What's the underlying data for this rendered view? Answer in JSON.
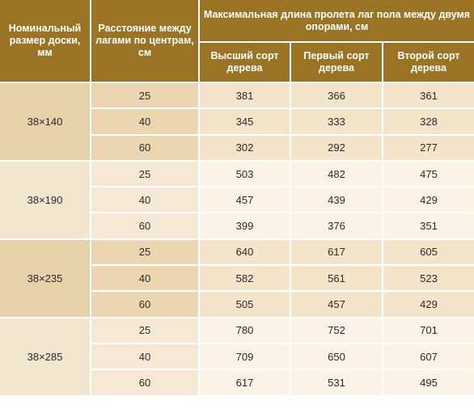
{
  "table": {
    "headers": {
      "size": "Номинальный размер доски, мм",
      "spacing": "Расстояние между лагами по центрам, см",
      "span": "Максимальная длина пролета лаг пола между двумя опорами, см",
      "grade_top": "Высший сорт дерева",
      "grade_first": "Первый сорт дерева",
      "grade_second": "Второй сорт дерева"
    },
    "groups": [
      {
        "size": "38×140",
        "rows": [
          {
            "spacing": "25",
            "top": "381",
            "first": "366",
            "second": "361"
          },
          {
            "spacing": "40",
            "top": "345",
            "first": "333",
            "second": "328"
          },
          {
            "spacing": "60",
            "top": "302",
            "first": "292",
            "second": "277"
          }
        ]
      },
      {
        "size": "38×190",
        "rows": [
          {
            "spacing": "25",
            "top": "503",
            "first": "482",
            "second": "475"
          },
          {
            "spacing": "40",
            "top": "457",
            "first": "439",
            "second": "429"
          },
          {
            "spacing": "60",
            "top": "399",
            "first": "376",
            "second": "351"
          }
        ]
      },
      {
        "size": "38×235",
        "rows": [
          {
            "spacing": "25",
            "top": "640",
            "first": "617",
            "second": "605"
          },
          {
            "spacing": "40",
            "top": "582",
            "first": "561",
            "second": "523"
          },
          {
            "spacing": "60",
            "top": "505",
            "first": "457",
            "second": "429"
          }
        ]
      },
      {
        "size": "38×285",
        "rows": [
          {
            "spacing": "25",
            "top": "780",
            "first": "752",
            "second": "701"
          },
          {
            "spacing": "40",
            "top": "709",
            "first": "650",
            "second": "607"
          },
          {
            "spacing": "60",
            "top": "617",
            "first": "531",
            "second": "495"
          }
        ]
      }
    ]
  }
}
